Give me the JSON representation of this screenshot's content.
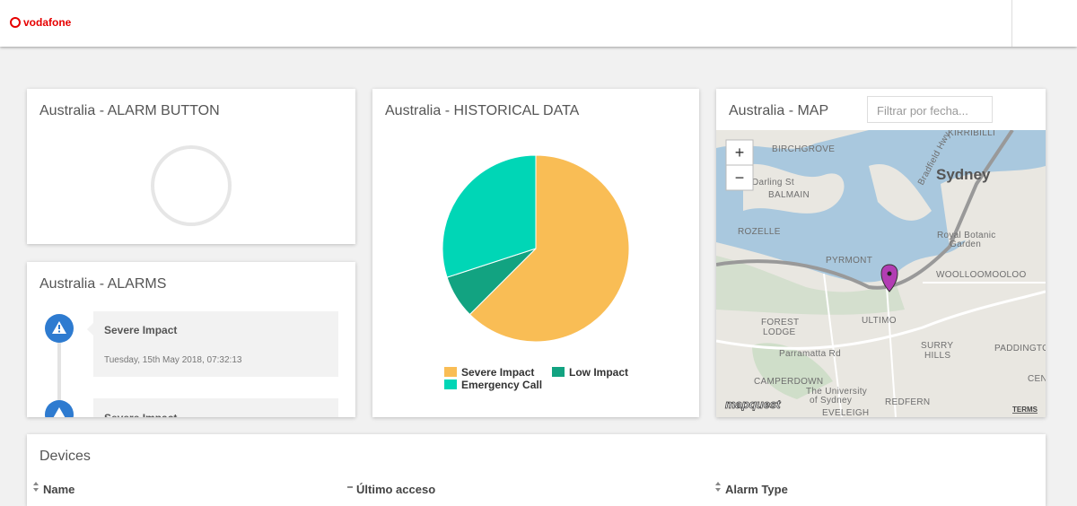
{
  "header": {
    "logo": "vodafone"
  },
  "alarm_button": {
    "title": "Australia - ALARM BUTTON"
  },
  "alarms": {
    "title": "Australia - ALARMS",
    "items": [
      {
        "type": "Severe Impact",
        "date": "Tuesday, 15th May 2018, 07:32:13"
      },
      {
        "type": "Severe Impact"
      }
    ]
  },
  "historical": {
    "title": "Australia - HISTORICAL DATA",
    "chart": {
      "type": "pie",
      "categories": [
        "Severe Impact",
        "Low Impact",
        "Emergency Call"
      ],
      "values": [
        62.5,
        7.5,
        30
      ],
      "colors": [
        "#f9bd55",
        "#12a381",
        "#00d6b6"
      ]
    }
  },
  "map": {
    "title": "Australia - MAP",
    "filter_placeholder": "Filtrar por fecha...",
    "zoom_in": "+",
    "zoom_out": "−",
    "labels": [
      "KIRRIBILLI",
      "BIRCHGROVE",
      "Sydney",
      "Darling St",
      "BALMAIN",
      "ROZELLE",
      "Royal Botanic",
      "Garden",
      "PYRMONT",
      "WOOLLOOMOOLOO",
      "FOREST",
      "LODGE",
      "ULTIMO",
      "SURRY",
      "HILLS",
      "PADDINGTON",
      "Parramatta Rd",
      "CAMPERDOWN",
      "The University",
      "of Sydney",
      "REDFERN",
      "EVELEIGH",
      "Bradfield Hwy",
      "CEN"
    ],
    "attribution": "mapquest",
    "terms": "TERMS"
  },
  "devices": {
    "title": "Devices",
    "columns": [
      "Name",
      "Último acceso",
      "Alarm Type"
    ]
  }
}
